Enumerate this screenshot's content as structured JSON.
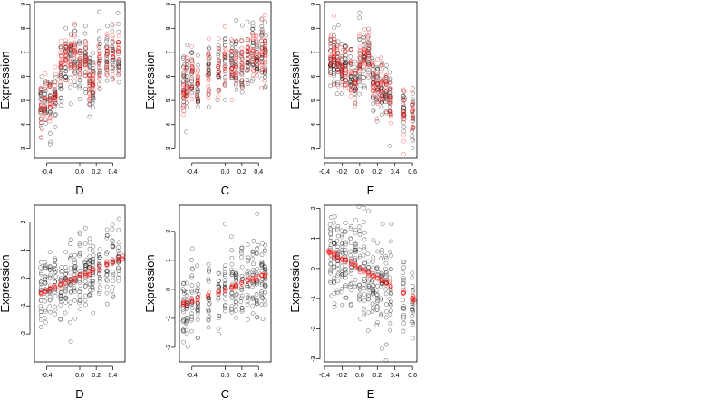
{
  "colors": {
    "black_points": "#000000",
    "red_points": "#ff0000",
    "frame": "#000000"
  },
  "chart_data": [
    {
      "type": "scatter",
      "panel": "top-left",
      "xlabel": "D",
      "ylabel": "Expression",
      "xlim": [
        -0.55,
        0.55
      ],
      "ylim": [
        2.6,
        9.1
      ],
      "xticks": [
        -0.4,
        0.0,
        0.2,
        0.4
      ],
      "xtick_labels": [
        "-0.4",
        "0.0",
        "0.2",
        "0.4"
      ],
      "yticks": [
        3,
        4,
        5,
        6,
        7,
        8,
        9
      ],
      "ytick_labels": [
        "3",
        "4",
        "5",
        "6",
        "7",
        "8",
        "9"
      ],
      "grid": false,
      "series": [
        {
          "color": "black",
          "marker": "open-circle",
          "groups": [
            [
              -0.47,
              4.9,
              0.7
            ],
            [
              -0.42,
              5.0,
              0.6
            ],
            [
              -0.36,
              4.9,
              0.6
            ],
            [
              -0.3,
              5.2,
              0.6
            ],
            [
              -0.23,
              6.1,
              0.7
            ],
            [
              -0.17,
              6.7,
              0.6
            ],
            [
              -0.11,
              6.7,
              0.6
            ],
            [
              -0.06,
              6.8,
              0.6
            ],
            [
              0.0,
              6.6,
              0.6
            ],
            [
              0.07,
              6.7,
              0.6
            ],
            [
              0.12,
              5.7,
              0.6
            ],
            [
              0.16,
              5.7,
              0.6
            ],
            [
              0.24,
              6.6,
              0.7
            ],
            [
              0.33,
              6.8,
              0.6
            ],
            [
              0.4,
              7.0,
              0.7
            ],
            [
              0.47,
              7.0,
              0.6
            ]
          ]
        },
        {
          "color": "red",
          "marker": "open-circle",
          "groups": [
            [
              -0.47,
              4.7,
              0.5
            ],
            [
              -0.42,
              5.1,
              0.5
            ],
            [
              -0.36,
              5.0,
              0.5
            ],
            [
              -0.3,
              5.3,
              0.5
            ],
            [
              -0.23,
              6.2,
              0.5
            ],
            [
              -0.17,
              6.8,
              0.5
            ],
            [
              -0.11,
              6.9,
              0.5
            ],
            [
              -0.06,
              7.0,
              0.5
            ],
            [
              0.0,
              6.5,
              0.5
            ],
            [
              0.07,
              6.7,
              0.5
            ],
            [
              0.12,
              5.8,
              0.5
            ],
            [
              0.16,
              5.8,
              0.5
            ],
            [
              0.24,
              6.6,
              0.5
            ],
            [
              0.33,
              6.9,
              0.5
            ],
            [
              0.4,
              7.1,
              0.5
            ],
            [
              0.47,
              7.2,
              0.5
            ]
          ]
        }
      ]
    },
    {
      "type": "scatter",
      "panel": "top-middle",
      "xlabel": "C",
      "ylabel": "Expression",
      "xlim": [
        -0.55,
        0.55
      ],
      "ylim": [
        2.6,
        9.1
      ],
      "xticks": [
        -0.4,
        0.0,
        0.2,
        0.4
      ],
      "xtick_labels": [
        "-0.4",
        "0.0",
        "0.2",
        "0.4"
      ],
      "yticks": [
        3,
        4,
        5,
        6,
        7,
        8,
        9
      ],
      "ytick_labels": [
        "3",
        "4",
        "5",
        "6",
        "7",
        "8",
        "9"
      ],
      "grid": false,
      "series": [
        {
          "color": "black",
          "marker": "open-circle",
          "groups": [
            [
              -0.5,
              5.7,
              0.7
            ],
            [
              -0.46,
              5.8,
              0.7
            ],
            [
              -0.4,
              6.1,
              0.6
            ],
            [
              -0.33,
              5.6,
              0.6
            ],
            [
              -0.2,
              6.3,
              0.6
            ],
            [
              -0.08,
              6.4,
              0.6
            ],
            [
              0.0,
              6.5,
              0.7
            ],
            [
              0.08,
              6.6,
              0.6
            ],
            [
              0.13,
              6.6,
              0.7
            ],
            [
              0.2,
              6.5,
              0.6
            ],
            [
              0.27,
              6.8,
              0.7
            ],
            [
              0.33,
              6.9,
              0.7
            ],
            [
              0.38,
              6.8,
              0.6
            ],
            [
              0.44,
              7.0,
              0.7
            ],
            [
              0.48,
              6.9,
              0.8
            ]
          ]
        },
        {
          "color": "red",
          "marker": "open-circle",
          "groups": [
            [
              -0.5,
              5.5,
              0.6
            ],
            [
              -0.46,
              5.8,
              0.6
            ],
            [
              -0.4,
              6.0,
              0.5
            ],
            [
              -0.33,
              5.6,
              0.5
            ],
            [
              -0.2,
              6.3,
              0.5
            ],
            [
              -0.08,
              6.4,
              0.5
            ],
            [
              0.0,
              6.5,
              0.5
            ],
            [
              0.08,
              6.6,
              0.5
            ],
            [
              0.13,
              6.6,
              0.5
            ],
            [
              0.2,
              6.6,
              0.5
            ],
            [
              0.27,
              6.8,
              0.5
            ],
            [
              0.33,
              6.9,
              0.5
            ],
            [
              0.38,
              6.9,
              0.5
            ],
            [
              0.44,
              7.1,
              0.5
            ],
            [
              0.48,
              7.1,
              0.6
            ]
          ]
        }
      ]
    },
    {
      "type": "scatter",
      "panel": "top-right",
      "xlabel": "E",
      "ylabel": "Expression",
      "xlim": [
        -0.4,
        0.65
      ],
      "ylim": [
        2.6,
        9.1
      ],
      "xticks": [
        -0.4,
        -0.2,
        0.0,
        0.2,
        0.4,
        0.6
      ],
      "xtick_labels": [
        "-0.4",
        "-0.2",
        "0.0",
        "0.2",
        "0.4",
        "0.6"
      ],
      "yticks": [
        3,
        4,
        5,
        6,
        7,
        8,
        9
      ],
      "ytick_labels": [
        "3",
        "4",
        "5",
        "6",
        "7",
        "8",
        "9"
      ],
      "grid": false,
      "series": [
        {
          "color": "black",
          "marker": "open-circle",
          "groups": [
            [
              -0.33,
              6.7,
              0.6
            ],
            [
              -0.29,
              6.8,
              0.6
            ],
            [
              -0.25,
              6.6,
              0.6
            ],
            [
              -0.2,
              6.3,
              0.6
            ],
            [
              -0.16,
              6.2,
              0.6
            ],
            [
              -0.1,
              6.1,
              0.6
            ],
            [
              -0.05,
              5.6,
              0.6
            ],
            [
              0.0,
              6.8,
              0.7
            ],
            [
              0.05,
              6.6,
              0.6
            ],
            [
              0.1,
              6.8,
              0.6
            ],
            [
              0.15,
              5.6,
              0.6
            ],
            [
              0.2,
              5.5,
              0.6
            ],
            [
              0.25,
              5.4,
              0.6
            ],
            [
              0.3,
              5.4,
              0.6
            ],
            [
              0.35,
              5.1,
              0.6
            ],
            [
              0.5,
              4.7,
              0.6
            ],
            [
              0.6,
              4.3,
              0.6
            ]
          ]
        },
        {
          "color": "red",
          "marker": "open-circle",
          "groups": [
            [
              -0.33,
              6.8,
              0.5
            ],
            [
              -0.29,
              6.9,
              0.5
            ],
            [
              -0.25,
              6.7,
              0.5
            ],
            [
              -0.2,
              6.4,
              0.5
            ],
            [
              -0.16,
              6.3,
              0.5
            ],
            [
              -0.1,
              6.1,
              0.5
            ],
            [
              -0.05,
              5.6,
              0.5
            ],
            [
              0.0,
              6.8,
              0.5
            ],
            [
              0.05,
              6.8,
              0.5
            ],
            [
              0.1,
              7.0,
              0.5
            ],
            [
              0.15,
              5.7,
              0.5
            ],
            [
              0.2,
              5.6,
              0.5
            ],
            [
              0.25,
              5.5,
              0.5
            ],
            [
              0.3,
              5.5,
              0.5
            ],
            [
              0.35,
              5.2,
              0.5
            ],
            [
              0.5,
              4.5,
              0.5
            ],
            [
              0.6,
              4.3,
              0.5
            ]
          ]
        }
      ]
    },
    {
      "type": "scatter",
      "panel": "bottom-left",
      "xlabel": "D",
      "ylabel": "Expression",
      "xlim": [
        -0.55,
        0.55
      ],
      "ylim": [
        -3.0,
        2.6
      ],
      "xticks": [
        -0.4,
        0.0,
        0.2,
        0.4
      ],
      "xtick_labels": [
        "-0.4",
        "0.0",
        "0.2",
        "0.4"
      ],
      "yticks": [
        -2,
        -1,
        0,
        1,
        2
      ],
      "ytick_labels": [
        "-2",
        "-1",
        "0",
        "1",
        "2"
      ],
      "grid": false,
      "series": [
        {
          "color": "black",
          "marker": "open-circle",
          "fit": {
            "intercept": 0.05,
            "slope": 1.3,
            "spread": 0.65
          },
          "x_groups": [
            -0.47,
            -0.42,
            -0.36,
            -0.3,
            -0.23,
            -0.17,
            -0.11,
            -0.06,
            0.0,
            0.07,
            0.12,
            0.16,
            0.24,
            0.33,
            0.4,
            0.47
          ]
        },
        {
          "color": "red",
          "marker": "open-circle",
          "fit": {
            "intercept": 0.05,
            "slope": 1.3,
            "spread": 0.06
          },
          "x_groups": [
            -0.47,
            -0.42,
            -0.36,
            -0.3,
            -0.23,
            -0.17,
            -0.11,
            -0.06,
            0.0,
            0.07,
            0.12,
            0.16,
            0.24,
            0.33,
            0.4,
            0.47,
            0.52
          ]
        }
      ]
    },
    {
      "type": "scatter",
      "panel": "bottom-middle",
      "xlabel": "C",
      "ylabel": "Expression",
      "xlim": [
        -0.55,
        0.55
      ],
      "ylim": [
        -2.5,
        2.9
      ],
      "xticks": [
        -0.4,
        0.0,
        0.2,
        0.4
      ],
      "xtick_labels": [
        "-0.4",
        "0.0",
        "0.2",
        "0.4"
      ],
      "yticks": [
        -2,
        -1,
        0,
        1,
        2
      ],
      "ytick_labels": [
        "-2",
        "-1",
        "0",
        "1",
        "2"
      ],
      "grid": false,
      "series": [
        {
          "color": "black",
          "marker": "open-circle",
          "fit": {
            "intercept": 0.0,
            "slope": 1.05,
            "spread": 0.7
          },
          "x_groups": [
            -0.5,
            -0.46,
            -0.4,
            -0.33,
            -0.2,
            -0.08,
            0.0,
            0.08,
            0.13,
            0.2,
            0.27,
            0.33,
            0.38,
            0.44,
            0.48
          ]
        },
        {
          "color": "red",
          "marker": "open-circle",
          "fit": {
            "intercept": 0.0,
            "slope": 1.05,
            "spread": 0.05
          },
          "x_groups": [
            -0.5,
            -0.46,
            -0.4,
            -0.33,
            -0.2,
            -0.08,
            0.0,
            0.08,
            0.13,
            0.2,
            0.27,
            0.33,
            0.38,
            0.44,
            0.48
          ]
        }
      ]
    },
    {
      "type": "scatter",
      "panel": "bottom-right",
      "xlabel": "E",
      "ylabel": "Expression",
      "xlim": [
        -0.4,
        0.65
      ],
      "ylim": [
        -3.1,
        2.1
      ],
      "xticks": [
        -0.4,
        -0.2,
        0.0,
        0.2,
        0.4,
        0.6
      ],
      "xtick_labels": [
        "-0.4",
        "-0.2",
        "0.0",
        "0.2",
        "0.4",
        "0.6"
      ],
      "yticks": [
        -3,
        -2,
        -1,
        0,
        1,
        2
      ],
      "ytick_labels": [
        "-3",
        "-2",
        "-1",
        "0",
        "1",
        "2"
      ],
      "grid": false,
      "series": [
        {
          "color": "black",
          "marker": "open-circle",
          "fit": {
            "intercept": 0.0,
            "slope": -1.6,
            "spread": 0.75
          },
          "x_groups": [
            -0.33,
            -0.29,
            -0.25,
            -0.2,
            -0.16,
            -0.1,
            -0.05,
            0.0,
            0.05,
            0.1,
            0.15,
            0.2,
            0.25,
            0.3,
            0.35,
            0.5,
            0.6
          ]
        },
        {
          "color": "red",
          "marker": "open-circle",
          "fit": {
            "intercept": 0.0,
            "slope": -1.6,
            "spread": 0.05
          },
          "x_groups": [
            -0.35,
            -0.33,
            -0.29,
            -0.25,
            -0.2,
            -0.16,
            -0.1,
            -0.05,
            0.0,
            0.05,
            0.1,
            0.15,
            0.2,
            0.25,
            0.3,
            0.35,
            0.5,
            0.6,
            0.62
          ]
        }
      ]
    }
  ]
}
